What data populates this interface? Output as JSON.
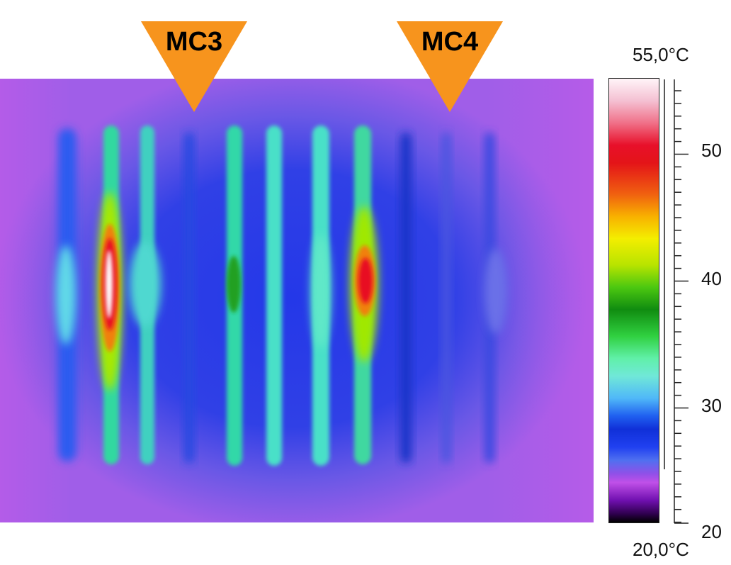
{
  "markers": [
    {
      "id": "mc3",
      "label": "MC3",
      "color": "#f7941d"
    },
    {
      "id": "mc4",
      "label": "MC4",
      "color": "#f7941d"
    }
  ],
  "colorbar": {
    "max_label": "55,0°C",
    "min_label": "20,0°C",
    "ticks": [
      "50",
      "40",
      "30",
      "20"
    ]
  }
}
